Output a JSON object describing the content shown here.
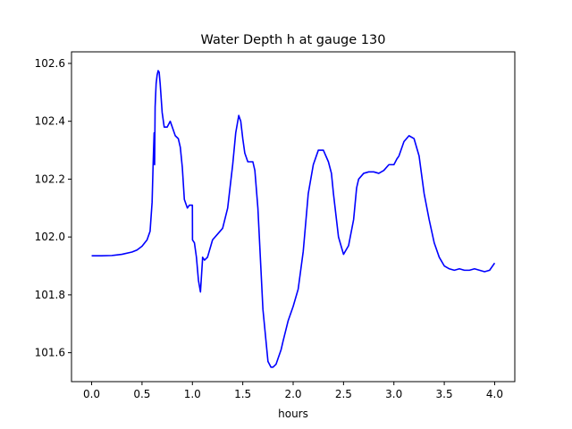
{
  "chart_data": {
    "type": "line",
    "title": "Water Depth h at gauge 130",
    "xlabel": "hours",
    "ylabel": "",
    "xlim": [
      -0.2,
      4.2
    ],
    "ylim": [
      101.5,
      102.64
    ],
    "xticks": [
      "0.0",
      "0.5",
      "1.0",
      "1.5",
      "2.0",
      "2.5",
      "3.0",
      "3.5",
      "4.0"
    ],
    "yticks": [
      "101.6",
      "101.8",
      "102.0",
      "102.2",
      "102.4",
      "102.6"
    ],
    "grid": false,
    "series": [
      {
        "color": "#0000ff",
        "x": [
          0.0,
          0.1,
          0.2,
          0.3,
          0.4,
          0.45,
          0.5,
          0.55,
          0.58,
          0.6,
          0.61,
          0.62,
          0.625,
          0.63,
          0.64,
          0.65,
          0.66,
          0.67,
          0.68,
          0.7,
          0.72,
          0.75,
          0.78,
          0.8,
          0.83,
          0.86,
          0.88,
          0.9,
          0.92,
          0.95,
          0.97,
          0.99,
          1.0,
          1.001,
          1.02,
          1.04,
          1.06,
          1.08,
          1.1,
          1.101,
          1.12,
          1.15,
          1.2,
          1.25,
          1.3,
          1.35,
          1.4,
          1.43,
          1.46,
          1.48,
          1.5,
          1.52,
          1.55,
          1.58,
          1.6,
          1.62,
          1.65,
          1.7,
          1.75,
          1.78,
          1.8,
          1.83,
          1.85,
          1.88,
          1.9,
          1.95,
          2.0,
          2.05,
          2.1,
          2.15,
          2.2,
          2.25,
          2.3,
          2.35,
          2.38,
          2.4,
          2.45,
          2.5,
          2.55,
          2.6,
          2.63,
          2.65,
          2.7,
          2.75,
          2.8,
          2.85,
          2.9,
          2.95,
          3.0,
          3.03,
          3.05,
          3.1,
          3.15,
          3.2,
          3.25,
          3.3,
          3.35,
          3.4,
          3.45,
          3.5,
          3.55,
          3.6,
          3.65,
          3.7,
          3.75,
          3.8,
          3.85,
          3.9,
          3.95,
          4.0
        ],
        "y": [
          101.935,
          101.935,
          101.936,
          101.94,
          101.948,
          101.955,
          101.968,
          101.99,
          102.02,
          102.12,
          102.25,
          102.36,
          102.25,
          102.45,
          102.53,
          102.56,
          102.575,
          102.57,
          102.53,
          102.43,
          102.38,
          102.38,
          102.4,
          102.38,
          102.35,
          102.34,
          102.31,
          102.24,
          102.13,
          102.1,
          102.11,
          102.11,
          102.11,
          101.99,
          101.98,
          101.93,
          101.85,
          101.81,
          101.92,
          101.93,
          101.92,
          101.93,
          101.99,
          102.01,
          102.03,
          102.1,
          102.25,
          102.36,
          102.42,
          102.4,
          102.34,
          102.29,
          102.26,
          102.26,
          102.26,
          102.23,
          102.1,
          101.75,
          101.57,
          101.55,
          101.55,
          101.56,
          101.58,
          101.61,
          101.64,
          101.71,
          101.76,
          101.82,
          101.95,
          102.15,
          102.25,
          102.3,
          102.3,
          102.26,
          102.22,
          102.15,
          102.0,
          101.94,
          101.97,
          102.06,
          102.17,
          102.2,
          102.22,
          102.225,
          102.225,
          102.22,
          102.23,
          102.25,
          102.25,
          102.27,
          102.28,
          102.33,
          102.35,
          102.34,
          102.28,
          102.15,
          102.06,
          101.98,
          101.93,
          101.9,
          101.89,
          101.885,
          101.89,
          101.885,
          101.885,
          101.89,
          101.885,
          101.88,
          101.885,
          101.91
        ]
      }
    ]
  }
}
